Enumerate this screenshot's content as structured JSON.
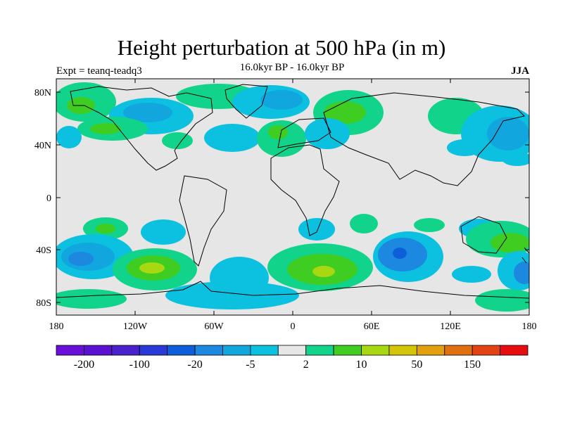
{
  "title": "Height perturbation at 500 hPa (in m)",
  "experiment": "Expt = teanq-teadq3",
  "period": "16.0kyr BP - 16.0kyr BP",
  "season": "JJA",
  "map": {
    "projection": "cylindrical equidistant",
    "lat_ticks": [
      "80N",
      "40N",
      "0",
      "40S",
      "80S"
    ],
    "lon_ticks": [
      "180",
      "120W",
      "60W",
      "0",
      "60E",
      "120E",
      "180"
    ]
  },
  "colorbar": {
    "colors": [
      "#6a0fd8",
      "#5a12d0",
      "#4a22cc",
      "#2a3ad6",
      "#0f5ed9",
      "#1c88e0",
      "#11a6de",
      "#0cc0df",
      "#e6e6e6",
      "#12d38a",
      "#3fcd22",
      "#a8d812",
      "#d6c409",
      "#e1a00c",
      "#e0700f",
      "#e24214",
      "#e60d10"
    ],
    "tick_labels": [
      "-200",
      "-100",
      "-20",
      "-5",
      "2",
      "10",
      "50",
      "150"
    ]
  },
  "icons": {
    "map": "world-coastline-map"
  }
}
